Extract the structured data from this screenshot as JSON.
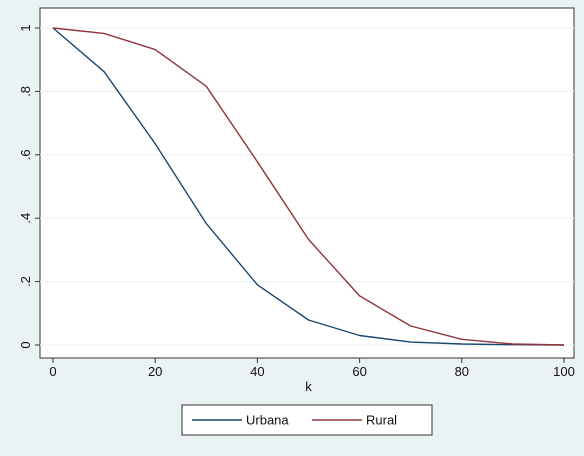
{
  "chart_data": {
    "type": "line",
    "title": "",
    "xlabel": "k",
    "ylabel": "",
    "xlim": [
      0,
      100
    ],
    "ylim": [
      0,
      1
    ],
    "x_ticks": [
      0,
      20,
      40,
      60,
      80,
      100
    ],
    "x_tick_labels": [
      "0",
      "20",
      "40",
      "60",
      "80",
      "100"
    ],
    "y_ticks": [
      0,
      0.2,
      0.4,
      0.6,
      0.8,
      1
    ],
    "y_tick_labels": [
      "0",
      ".2",
      ".4",
      ".6",
      ".8",
      "1"
    ],
    "grid": true,
    "legend_position": "bottom",
    "x": [
      0,
      10,
      20,
      30,
      40,
      50,
      60,
      70,
      80,
      90,
      100
    ],
    "series": [
      {
        "name": "Urbana",
        "color": "#1a476f",
        "values": [
          1.0,
          0.862,
          0.635,
          0.383,
          0.19,
          0.079,
          0.03,
          0.009,
          0.003,
          0.001,
          0.0
        ]
      },
      {
        "name": "Rural",
        "color": "#90353b",
        "values": [
          1.0,
          0.983,
          0.932,
          0.816,
          0.578,
          0.333,
          0.155,
          0.06,
          0.018,
          0.003,
          0.0
        ]
      }
    ]
  }
}
